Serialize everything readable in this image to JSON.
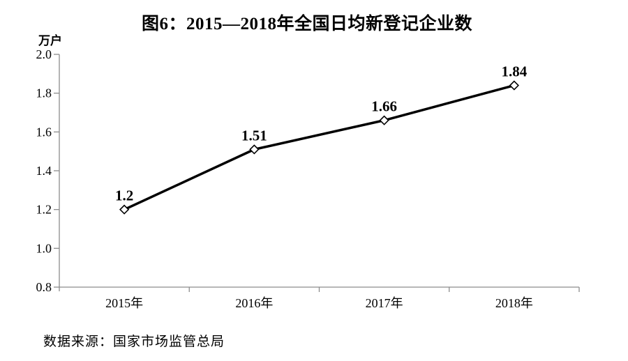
{
  "chart_data": {
    "type": "line",
    "title": "图6：2015—2018年全国日均新登记企业数",
    "ylabel": "万户",
    "xlabel": "",
    "categories": [
      "2015年",
      "2016年",
      "2017年",
      "2018年"
    ],
    "values": [
      1.2,
      1.51,
      1.66,
      1.84
    ],
    "value_labels": [
      "1.2",
      "1.51",
      "1.66",
      "1.84"
    ],
    "yticks": [
      "2.0",
      "1.8",
      "1.6",
      "1.4",
      "1.2",
      "1.0",
      "0.8"
    ],
    "ylim": [
      0.8,
      2.0
    ],
    "grid": false,
    "legend": false,
    "marker": "open-diamond",
    "source": "数据来源：国家市场监管总局",
    "colors": {
      "line": "#000000",
      "marker_fill": "#ffffff",
      "axis": "#8c8c8c",
      "text": "#000000"
    }
  }
}
